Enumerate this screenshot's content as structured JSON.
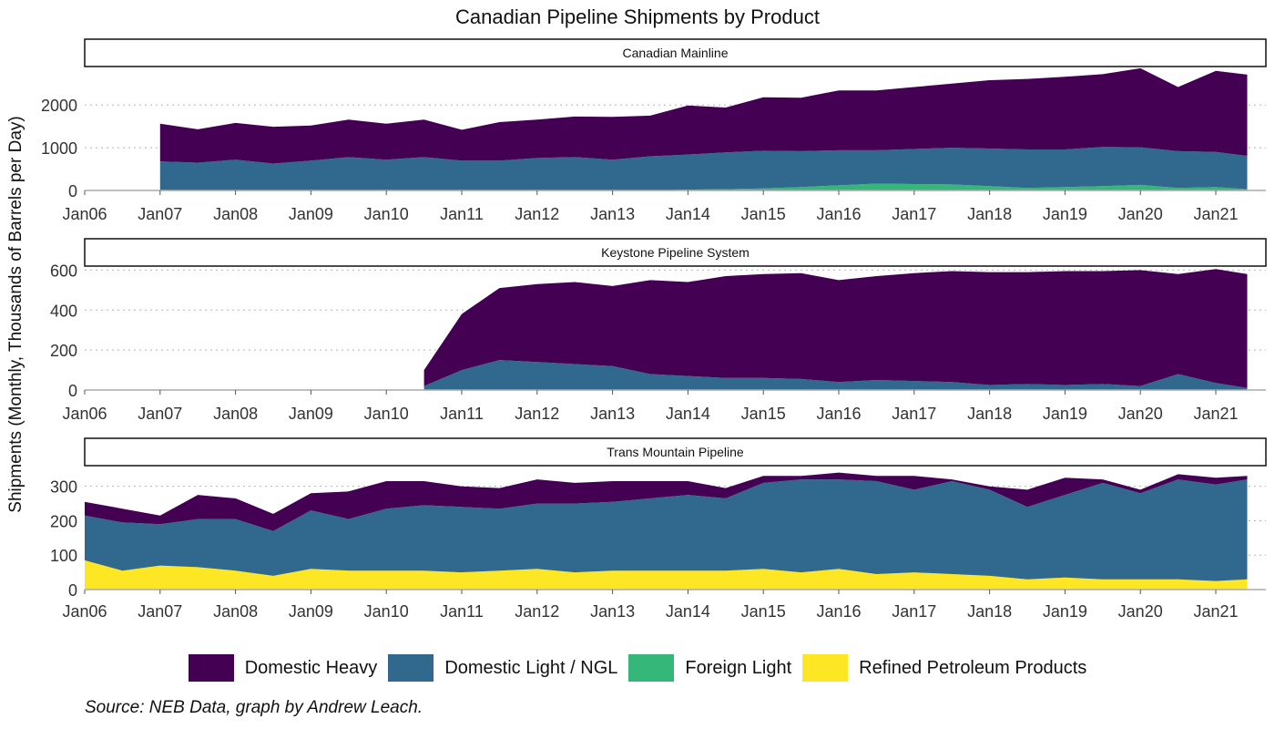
{
  "chart_data": {
    "type": "area",
    "stacking": "stacked",
    "title": "Canadian Pipeline Shipments by Product",
    "ylabel": "Shipments (Monthly, Thousands of Barrels per Day)",
    "xlabel": "",
    "caption": "Source: NEB Data, graph by Andrew Leach.",
    "grid": "horizontal dotted",
    "legend_position": "bottom",
    "x_tick_labels": [
      "Jan06",
      "Jan07",
      "Jan08",
      "Jan09",
      "Jan10",
      "Jan11",
      "Jan12",
      "Jan13",
      "Jan14",
      "Jan15",
      "Jan16",
      "Jan17",
      "Jan18",
      "Jan19",
      "Jan20",
      "Jan21"
    ],
    "legend": [
      {
        "name": "Domestic Heavy",
        "color": "#440154"
      },
      {
        "name": "Domestic Light / NGL",
        "color": "#31688e"
      },
      {
        "name": "Foreign Light",
        "color": "#35b779"
      },
      {
        "name": "Refined Petroleum Products",
        "color": "#fde725"
      }
    ],
    "panels": [
      {
        "strip": "Canadian Mainline",
        "ylim": [
          0,
          2900
        ],
        "yticks": [
          0,
          1000,
          2000
        ],
        "x": [
          "2007-01",
          "2007-07",
          "2008-01",
          "2008-07",
          "2009-01",
          "2009-07",
          "2010-01",
          "2010-07",
          "2011-01",
          "2011-07",
          "2012-01",
          "2012-07",
          "2013-01",
          "2013-07",
          "2014-01",
          "2014-07",
          "2015-01",
          "2015-07",
          "2016-01",
          "2016-07",
          "2017-01",
          "2017-07",
          "2018-01",
          "2018-07",
          "2019-01",
          "2019-07",
          "2020-01",
          "2020-07",
          "2021-01",
          "2021-06"
        ],
        "series": [
          {
            "name": "Foreign Light",
            "values": [
              0,
              0,
              0,
              0,
              0,
              0,
              0,
              0,
              0,
              0,
              0,
              0,
              0,
              0,
              20,
              30,
              50,
              80,
              120,
              160,
              150,
              140,
              100,
              60,
              80,
              100,
              130,
              60,
              80,
              30
            ]
          },
          {
            "name": "Domestic Light / NGL",
            "values": [
              680,
              650,
              720,
              630,
              700,
              780,
              720,
              780,
              700,
              700,
              760,
              780,
              720,
              800,
              820,
              860,
              880,
              840,
              820,
              780,
              820,
              860,
              880,
              900,
              880,
              920,
              880,
              860,
              820,
              780
            ]
          },
          {
            "name": "Domestic Heavy",
            "values": [
              880,
              780,
              860,
              860,
              820,
              880,
              840,
              880,
              720,
              900,
              900,
              950,
              1000,
              950,
              1150,
              1050,
              1250,
              1250,
              1400,
              1400,
              1450,
              1500,
              1600,
              1650,
              1700,
              1700,
              1850,
              1500,
              1900,
              1900
            ]
          }
        ]
      },
      {
        "strip": "Keystone Pipeline System",
        "ylim": [
          0,
          620
        ],
        "yticks": [
          0,
          200,
          400,
          600
        ],
        "x": [
          "2010-07",
          "2011-01",
          "2011-07",
          "2012-01",
          "2012-07",
          "2013-01",
          "2013-07",
          "2014-01",
          "2014-07",
          "2015-01",
          "2015-07",
          "2016-01",
          "2016-07",
          "2017-01",
          "2017-07",
          "2018-01",
          "2018-07",
          "2019-01",
          "2019-07",
          "2020-01",
          "2020-07",
          "2021-01",
          "2021-06"
        ],
        "series": [
          {
            "name": "Domestic Light / NGL",
            "values": [
              20,
              100,
              150,
              140,
              130,
              120,
              80,
              70,
              60,
              60,
              55,
              40,
              50,
              45,
              40,
              25,
              30,
              25,
              30,
              20,
              80,
              35,
              10
            ]
          },
          {
            "name": "Domestic Heavy",
            "values": [
              80,
              280,
              360,
              390,
              410,
              400,
              470,
              470,
              510,
              520,
              530,
              510,
              520,
              540,
              555,
              565,
              560,
              570,
              565,
              580,
              500,
              570,
              570
            ]
          }
        ]
      },
      {
        "strip": "Trans Mountain Pipeline",
        "ylim": [
          0,
          360
        ],
        "yticks": [
          0,
          100,
          200,
          300
        ],
        "x": [
          "2006-01",
          "2006-07",
          "2007-01",
          "2007-07",
          "2008-01",
          "2008-07",
          "2009-01",
          "2009-07",
          "2010-01",
          "2010-07",
          "2011-01",
          "2011-07",
          "2012-01",
          "2012-07",
          "2013-01",
          "2013-07",
          "2014-01",
          "2014-07",
          "2015-01",
          "2015-07",
          "2016-01",
          "2016-07",
          "2017-01",
          "2017-07",
          "2018-01",
          "2018-07",
          "2019-01",
          "2019-07",
          "2020-01",
          "2020-07",
          "2021-01",
          "2021-06"
        ],
        "series": [
          {
            "name": "Refined Petroleum Products",
            "values": [
              85,
              55,
              70,
              65,
              55,
              40,
              60,
              55,
              55,
              55,
              50,
              55,
              60,
              50,
              55,
              55,
              55,
              55,
              60,
              50,
              60,
              45,
              50,
              45,
              40,
              30,
              35,
              30,
              30,
              30,
              25,
              30
            ]
          },
          {
            "name": "Domestic Light / NGL",
            "values": [
              130,
              140,
              120,
              140,
              150,
              130,
              170,
              150,
              180,
              190,
              190,
              180,
              190,
              200,
              200,
              210,
              220,
              210,
              250,
              270,
              260,
              270,
              240,
              270,
              250,
              210,
              240,
              280,
              250,
              290,
              280,
              290
            ]
          },
          {
            "name": "Domestic Heavy",
            "values": [
              40,
              40,
              25,
              70,
              60,
              50,
              50,
              80,
              80,
              70,
              60,
              60,
              70,
              60,
              60,
              50,
              40,
              30,
              20,
              10,
              20,
              15,
              40,
              5,
              10,
              50,
              50,
              10,
              10,
              15,
              20,
              10
            ]
          }
        ]
      }
    ]
  }
}
